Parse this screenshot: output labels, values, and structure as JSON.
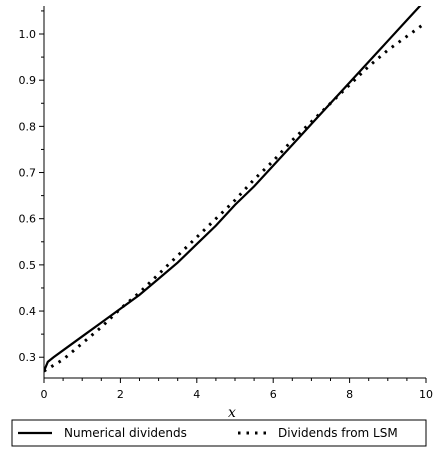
{
  "chart_data": {
    "type": "line",
    "xlabel": "x",
    "ylabel": "",
    "xlim": [
      0,
      10
    ],
    "ylim": [
      0.255,
      1.052
    ],
    "x_ticks": [
      0,
      2,
      4,
      6,
      8,
      10
    ],
    "x_tick_labels": [
      "0",
      "2",
      "4",
      "6",
      "8",
      "10"
    ],
    "y_ticks": [
      0.3,
      0.4,
      0.5,
      0.6,
      0.7,
      0.8,
      0.9,
      1.0
    ],
    "y_tick_labels": [
      "0.3",
      "0.4",
      "0.5",
      "0.6",
      "0.7",
      "0.8",
      "0.9",
      "1.0"
    ],
    "grid": false,
    "legend_placement": "bottom",
    "series": [
      {
        "name": "Numerical dividends",
        "style": "solid",
        "color": "#000000",
        "x": [
          0,
          0.1,
          0.25,
          0.5,
          1,
          1.5,
          2,
          2.5,
          3,
          3.5,
          4,
          4.5,
          5,
          5.5,
          6,
          6.5,
          7,
          7.5,
          8,
          8.5,
          9,
          9.5,
          10
        ],
        "y": [
          0.27,
          0.29,
          0.3,
          0.315,
          0.345,
          0.375,
          0.405,
          0.435,
          0.47,
          0.505,
          0.545,
          0.585,
          0.63,
          0.67,
          0.715,
          0.76,
          0.805,
          0.85,
          0.895,
          0.94,
          0.985,
          1.03,
          1.075
        ]
      },
      {
        "name": "Dividends from LSM",
        "style": "dotted",
        "color": "#000000",
        "x": [
          0,
          0.5,
          1,
          1.5,
          2,
          2.5,
          3,
          3.5,
          4,
          4.5,
          5,
          5.5,
          6,
          6.5,
          7,
          7.5,
          8,
          8.5,
          9,
          9.5,
          10
        ],
        "y": [
          0.27,
          0.295,
          0.33,
          0.365,
          0.405,
          0.44,
          0.48,
          0.52,
          0.56,
          0.6,
          0.64,
          0.685,
          0.725,
          0.77,
          0.81,
          0.85,
          0.89,
          0.93,
          0.965,
          0.995,
          1.025
        ]
      }
    ]
  }
}
